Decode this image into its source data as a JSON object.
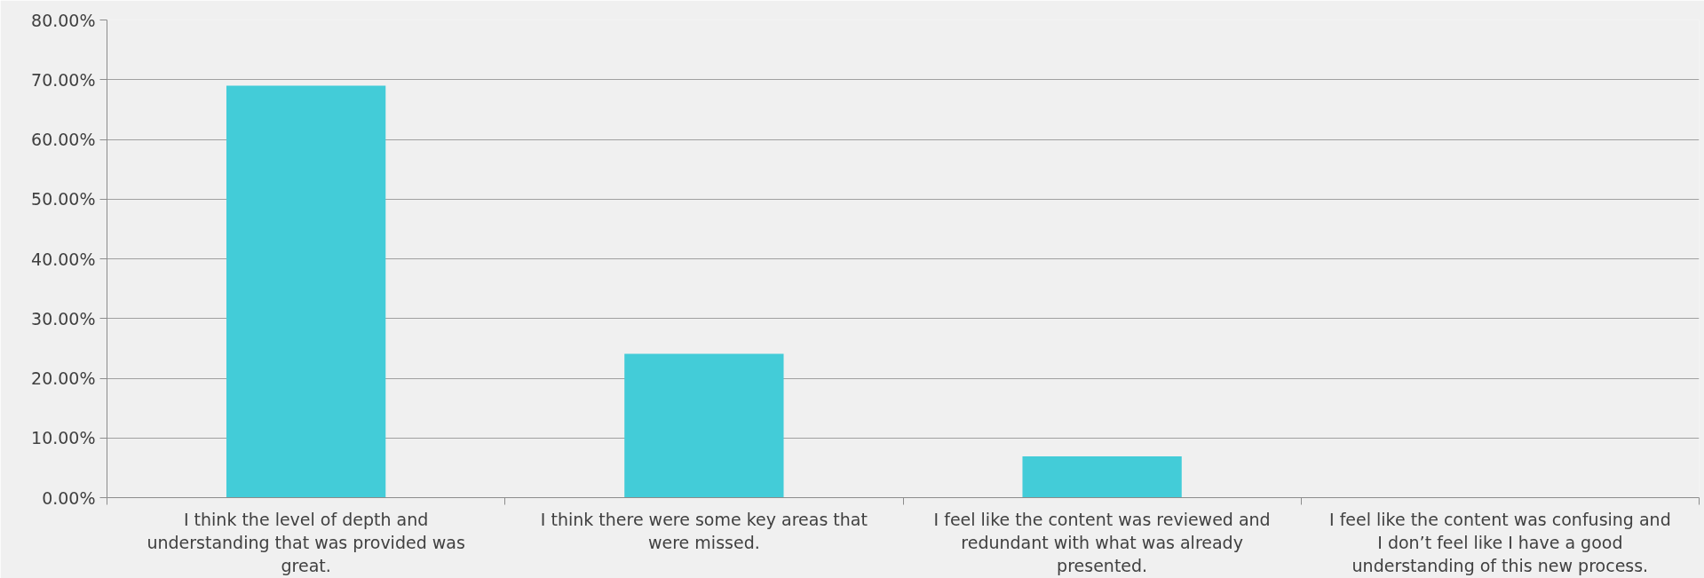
{
  "chart_data": {
    "type": "bar",
    "categories": [
      "I think the level of depth and understanding that was provided was great.",
      "I think there were some key areas that were missed.",
      "I feel like the content was reviewed and redundant with what was already presented.",
      "I feel like the content was confusing and I don’t feel like I have a good understanding of this new process."
    ],
    "values": [
      69,
      24.1,
      6.9,
      0
    ],
    "color": "#43ccd8",
    "ylim": [
      0,
      80
    ],
    "yticks": [
      {
        "value": 0,
        "label": "0.00%"
      },
      {
        "value": 10,
        "label": "10.00%"
      },
      {
        "value": 20,
        "label": "20.00%"
      },
      {
        "value": 30,
        "label": "30.00%"
      },
      {
        "value": 40,
        "label": "40.00%"
      },
      {
        "value": 50,
        "label": "50.00%"
      },
      {
        "value": 60,
        "label": "60.00%"
      },
      {
        "value": 70,
        "label": "70.00%"
      },
      {
        "value": 80,
        "label": "80.00%"
      }
    ],
    "grid": "y"
  }
}
